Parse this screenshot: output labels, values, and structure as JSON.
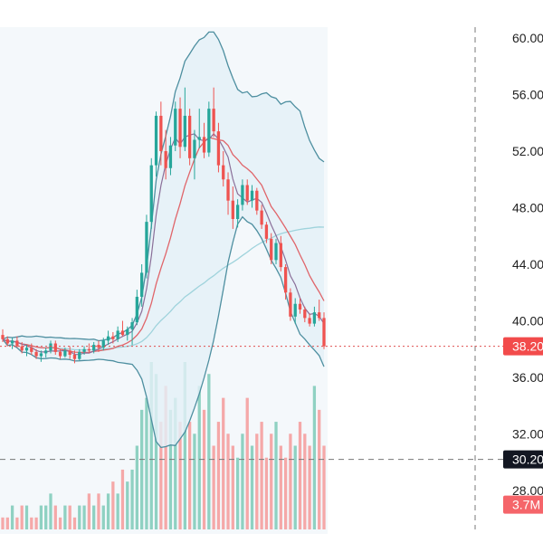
{
  "chart_data": {
    "type": "candlestick",
    "y_axis": {
      "range": [
        26.5,
        61.5
      ],
      "tick_labels": [
        "60.00",
        "56.00",
        "52.00",
        "48.00",
        "44.00",
        "40.00",
        "36.00",
        "32.00",
        "28.00"
      ],
      "tick_values": [
        60,
        56,
        52,
        48,
        44,
        40,
        36,
        32,
        28
      ]
    },
    "price_badges": [
      {
        "label": "38.20",
        "value": 38.2,
        "bg": "#f24b4b",
        "fg": "#ffffff"
      },
      {
        "label": "30.20",
        "value": 30.2,
        "bg": "#131722",
        "fg": "#ffffff"
      },
      {
        "label": "3.7M",
        "value": 27.0,
        "bg": "#f5656a",
        "fg": "#ffffff"
      }
    ],
    "current_price_line": 38.2,
    "crosshair_price": 30.2,
    "colors": {
      "up": "#26a69a",
      "down": "#ef5350",
      "bollinger": "#4e8fa0",
      "ma_fast": "#8a6f99",
      "ma_mid": "#e0656a",
      "ma_slow": "#9fd3dc",
      "band_fill": "#e3f0f8",
      "vol_up": "#8fd1c2",
      "vol_down": "#f5a8a8",
      "price_line": "#e05050",
      "crosshair": "#777777"
    },
    "candles": [
      {
        "o": 39.0,
        "h": 39.4,
        "l": 38.5,
        "c": 38.7
      },
      {
        "o": 38.7,
        "h": 38.9,
        "l": 38.2,
        "c": 38.4
      },
      {
        "o": 38.4,
        "h": 38.8,
        "l": 38.0,
        "c": 38.6
      },
      {
        "o": 38.6,
        "h": 38.9,
        "l": 38.1,
        "c": 38.2
      },
      {
        "o": 38.2,
        "h": 38.5,
        "l": 37.7,
        "c": 37.9
      },
      {
        "o": 37.9,
        "h": 38.3,
        "l": 37.5,
        "c": 38.1
      },
      {
        "o": 38.1,
        "h": 38.4,
        "l": 37.6,
        "c": 37.8
      },
      {
        "o": 37.8,
        "h": 38.0,
        "l": 37.3,
        "c": 37.5
      },
      {
        "o": 37.5,
        "h": 37.9,
        "l": 37.1,
        "c": 37.7
      },
      {
        "o": 37.7,
        "h": 38.1,
        "l": 37.4,
        "c": 37.9
      },
      {
        "o": 37.9,
        "h": 38.6,
        "l": 37.7,
        "c": 38.4
      },
      {
        "o": 38.4,
        "h": 38.6,
        "l": 37.6,
        "c": 37.8
      },
      {
        "o": 37.8,
        "h": 38.0,
        "l": 37.3,
        "c": 37.5
      },
      {
        "o": 37.5,
        "h": 38.1,
        "l": 37.4,
        "c": 37.9
      },
      {
        "o": 37.9,
        "h": 38.2,
        "l": 37.3,
        "c": 37.6
      },
      {
        "o": 37.6,
        "h": 37.9,
        "l": 37.0,
        "c": 37.3
      },
      {
        "o": 37.3,
        "h": 38.0,
        "l": 37.2,
        "c": 37.8
      },
      {
        "o": 37.8,
        "h": 38.2,
        "l": 37.6,
        "c": 38.0
      },
      {
        "o": 38.0,
        "h": 38.4,
        "l": 37.7,
        "c": 37.9
      },
      {
        "o": 37.9,
        "h": 38.5,
        "l": 37.7,
        "c": 38.3
      },
      {
        "o": 38.3,
        "h": 38.6,
        "l": 37.8,
        "c": 38.1
      },
      {
        "o": 38.1,
        "h": 38.8,
        "l": 37.9,
        "c": 38.6
      },
      {
        "o": 38.6,
        "h": 39.3,
        "l": 38.3,
        "c": 38.9
      },
      {
        "o": 38.9,
        "h": 39.2,
        "l": 38.4,
        "c": 38.7
      },
      {
        "o": 38.7,
        "h": 39.6,
        "l": 38.5,
        "c": 39.3
      },
      {
        "o": 39.3,
        "h": 40.0,
        "l": 38.9,
        "c": 39.0
      },
      {
        "o": 39.0,
        "h": 39.6,
        "l": 38.6,
        "c": 39.4
      },
      {
        "o": 39.4,
        "h": 40.2,
        "l": 38.3,
        "c": 39.9
      },
      {
        "o": 39.9,
        "h": 42.2,
        "l": 39.7,
        "c": 41.7
      },
      {
        "o": 41.7,
        "h": 44.0,
        "l": 41.0,
        "c": 43.4
      },
      {
        "o": 43.4,
        "h": 47.5,
        "l": 43.0,
        "c": 47.0
      },
      {
        "o": 47.0,
        "h": 51.5,
        "l": 46.5,
        "c": 51.0
      },
      {
        "o": 51.0,
        "h": 54.8,
        "l": 50.2,
        "c": 54.5
      },
      {
        "o": 54.5,
        "h": 55.5,
        "l": 51.0,
        "c": 52.0
      },
      {
        "o": 52.0,
        "h": 53.5,
        "l": 50.0,
        "c": 50.8
      },
      {
        "o": 50.8,
        "h": 53.0,
        "l": 50.3,
        "c": 52.4
      },
      {
        "o": 52.4,
        "h": 55.5,
        "l": 52.0,
        "c": 55.0
      },
      {
        "o": 55.0,
        "h": 55.8,
        "l": 51.5,
        "c": 52.3
      },
      {
        "o": 52.3,
        "h": 56.5,
        "l": 52.0,
        "c": 54.5
      },
      {
        "o": 54.5,
        "h": 55.0,
        "l": 51.0,
        "c": 51.5
      },
      {
        "o": 51.5,
        "h": 53.5,
        "l": 50.0,
        "c": 52.8
      },
      {
        "o": 52.8,
        "h": 55.0,
        "l": 52.2,
        "c": 53.0
      },
      {
        "o": 53.0,
        "h": 54.0,
        "l": 51.5,
        "c": 51.9
      },
      {
        "o": 51.9,
        "h": 55.5,
        "l": 51.6,
        "c": 55.0
      },
      {
        "o": 55.0,
        "h": 56.5,
        "l": 53.0,
        "c": 53.4
      },
      {
        "o": 53.4,
        "h": 54.0,
        "l": 50.5,
        "c": 51.0
      },
      {
        "o": 51.0,
        "h": 52.0,
        "l": 49.5,
        "c": 50.0
      },
      {
        "o": 50.0,
        "h": 50.5,
        "l": 47.5,
        "c": 48.5
      },
      {
        "o": 48.5,
        "h": 49.5,
        "l": 46.5,
        "c": 47.2
      },
      {
        "o": 47.2,
        "h": 48.6,
        "l": 46.6,
        "c": 48.2
      },
      {
        "o": 48.2,
        "h": 50.0,
        "l": 47.8,
        "c": 49.6
      },
      {
        "o": 49.6,
        "h": 50.0,
        "l": 48.2,
        "c": 48.5
      },
      {
        "o": 48.5,
        "h": 49.6,
        "l": 48.0,
        "c": 49.2
      },
      {
        "o": 49.2,
        "h": 49.4,
        "l": 47.5,
        "c": 47.8
      },
      {
        "o": 47.8,
        "h": 48.2,
        "l": 46.5,
        "c": 46.8
      },
      {
        "o": 46.8,
        "h": 47.0,
        "l": 45.5,
        "c": 45.8
      },
      {
        "o": 45.8,
        "h": 46.2,
        "l": 44.0,
        "c": 44.3
      },
      {
        "o": 44.3,
        "h": 45.8,
        "l": 44.0,
        "c": 45.5
      },
      {
        "o": 45.5,
        "h": 46.0,
        "l": 43.5,
        "c": 43.8
      },
      {
        "o": 43.8,
        "h": 44.0,
        "l": 41.5,
        "c": 42.0
      },
      {
        "o": 42.0,
        "h": 42.3,
        "l": 40.0,
        "c": 40.3
      },
      {
        "o": 40.3,
        "h": 41.6,
        "l": 39.8,
        "c": 41.2
      },
      {
        "o": 41.2,
        "h": 41.6,
        "l": 40.5,
        "c": 40.8
      },
      {
        "o": 40.8,
        "h": 41.0,
        "l": 39.9,
        "c": 40.2
      },
      {
        "o": 40.2,
        "h": 40.5,
        "l": 39.6,
        "c": 39.8
      },
      {
        "o": 39.8,
        "h": 41.0,
        "l": 39.6,
        "c": 40.6
      },
      {
        "o": 40.6,
        "h": 41.5,
        "l": 40.0,
        "c": 40.2
      },
      {
        "o": 40.2,
        "h": 40.6,
        "l": 38.0,
        "c": 38.2
      }
    ],
    "volume_levels": [
      1,
      1,
      2,
      1,
      2,
      2,
      1,
      1,
      2,
      2,
      3,
      2,
      1,
      2,
      2,
      1,
      2,
      2,
      3,
      2,
      3,
      2,
      3,
      4,
      3,
      5,
      4,
      5,
      7,
      10,
      11,
      14,
      13,
      9,
      12,
      10,
      11,
      9,
      14,
      9,
      8,
      12,
      10,
      13,
      7,
      9,
      11,
      8,
      7,
      6,
      8,
      11,
      7,
      8,
      9,
      6,
      8,
      9,
      7,
      6,
      8,
      7,
      9,
      8,
      7,
      12,
      10,
      7
    ],
    "volume_scale_max": 14
  }
}
